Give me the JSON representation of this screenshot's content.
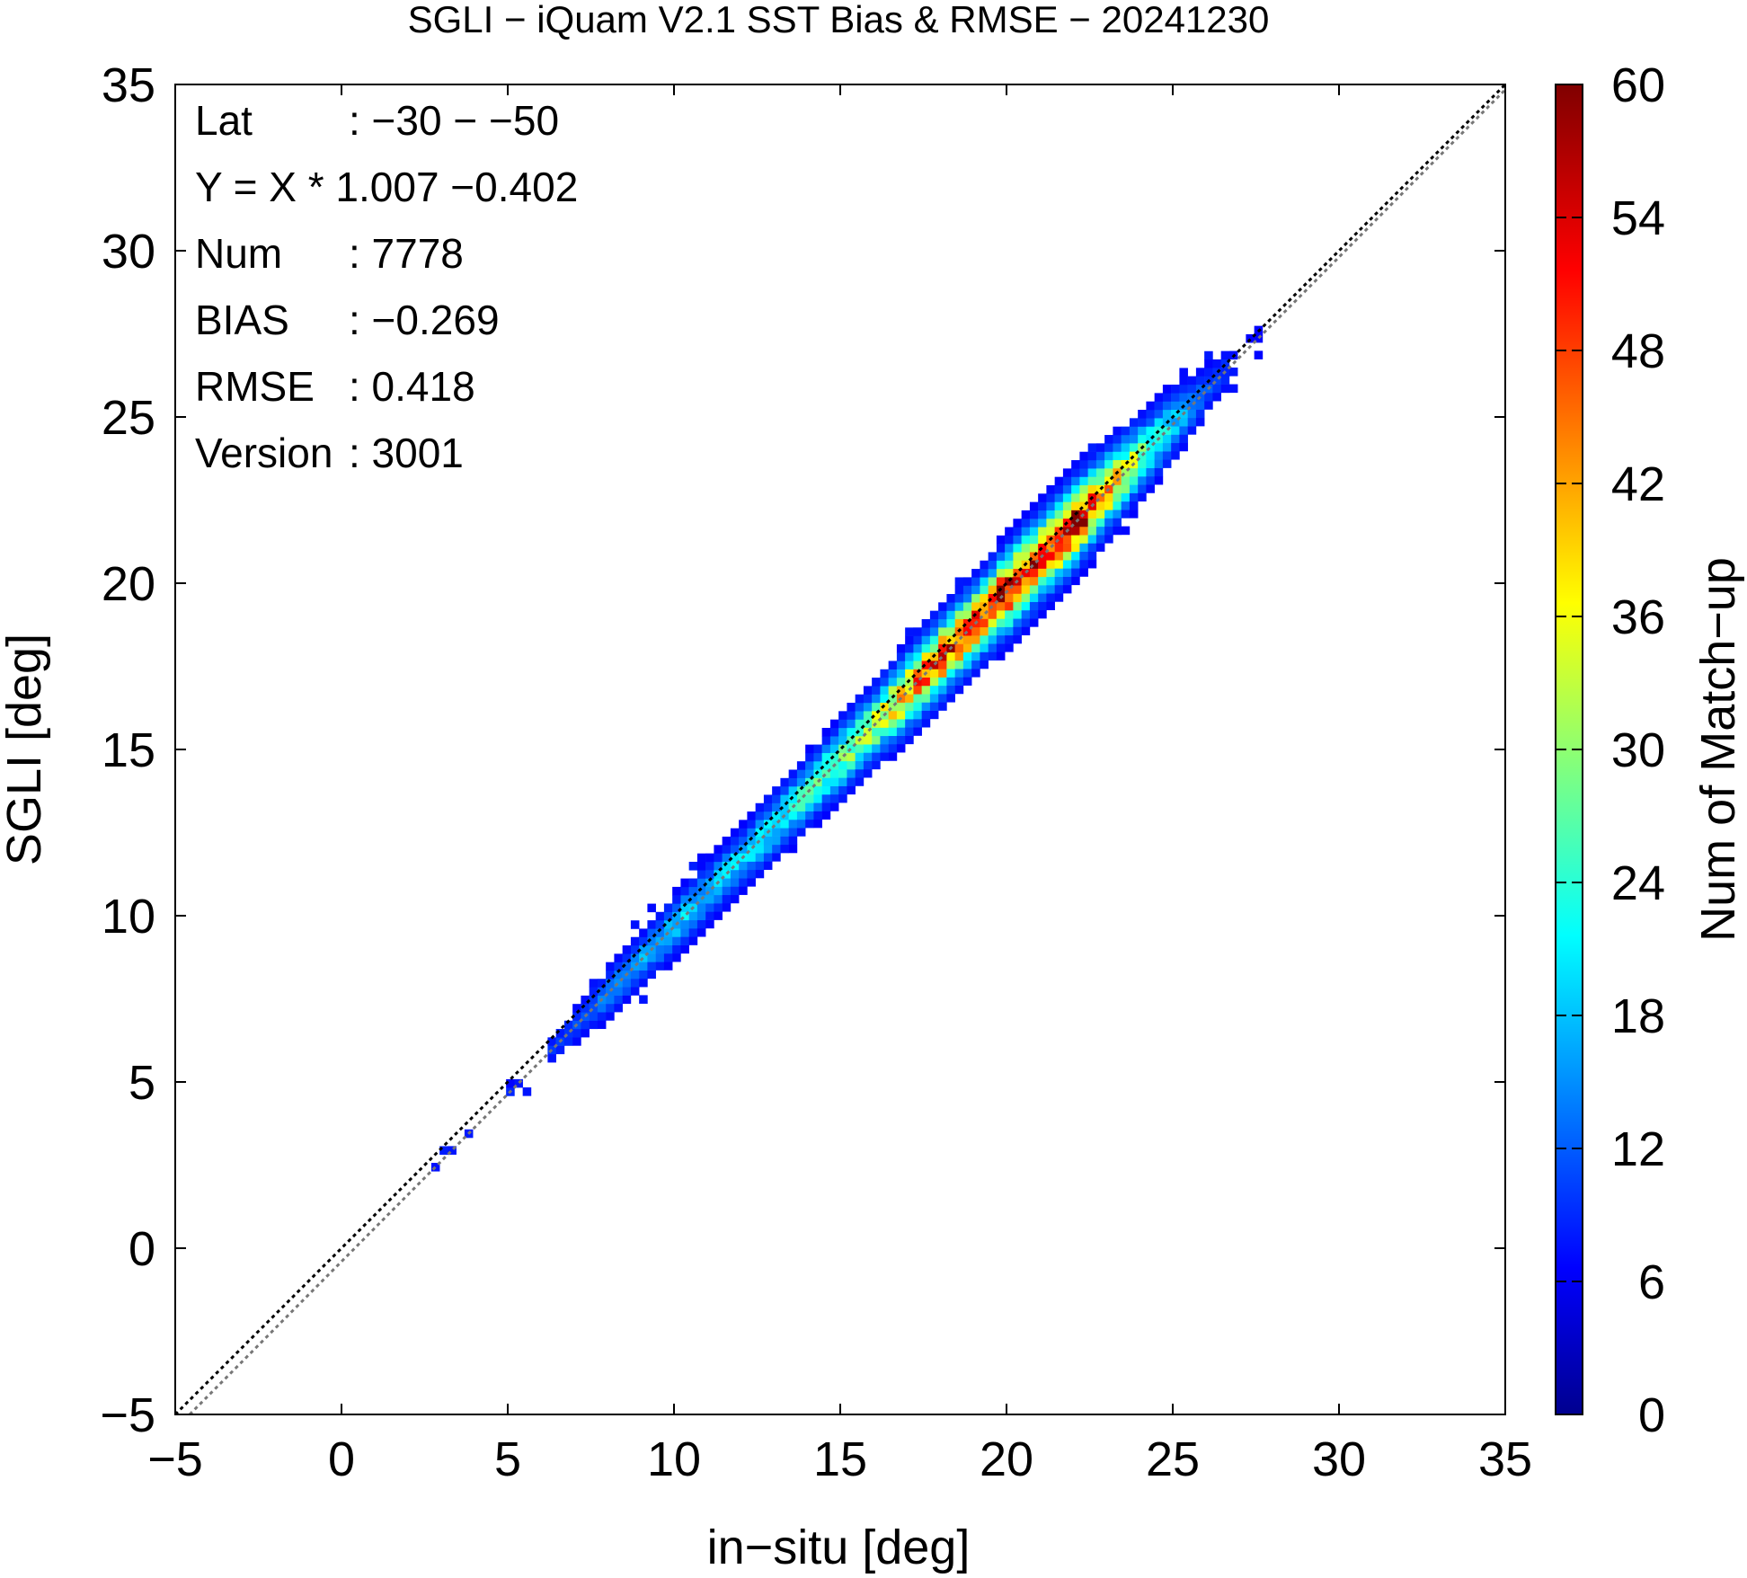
{
  "chart_data": {
    "type": "heatmap",
    "title": "SGLI − iQuam V2.1 SST Bias & RMSE  − 20241230",
    "xlabel": "in−situ [deg]",
    "ylabel": "SGLI [deg]",
    "xlim": [
      -5,
      35
    ],
    "ylim": [
      -5,
      35
    ],
    "x_ticks": [
      "−5",
      "0",
      "5",
      "10",
      "15",
      "20",
      "25",
      "30",
      "35"
    ],
    "y_ticks": [
      "−5",
      "0",
      "5",
      "10",
      "15",
      "20",
      "25",
      "30",
      "35"
    ],
    "grid": false,
    "colorbar": {
      "label": "Num of Match−up",
      "range": [
        0,
        60
      ],
      "ticks": [
        "0",
        "6",
        "12",
        "18",
        "24",
        "30",
        "36",
        "42",
        "48",
        "54",
        "60"
      ],
      "colormap": "jet"
    },
    "reference_lines": [
      {
        "name": "1:1",
        "slope": 1,
        "intercept": 0,
        "style": "dotted",
        "color": "#000000"
      },
      {
        "name": "fit",
        "slope": 1.007,
        "intercept": -0.402,
        "style": "dotted",
        "color": "#777777"
      }
    ],
    "stats": [
      {
        "key": "Lat",
        "value": ": −30 − −50"
      },
      {
        "key": "Y = X * 1.007 −0.402",
        "value": ""
      },
      {
        "key": "Num",
        "value": ": 7778"
      },
      {
        "key": "BIAS",
        "value": ": −0.269"
      },
      {
        "key": "RMSE",
        "value": ": 0.418"
      },
      {
        "key": "Version",
        "value": ": 3001"
      }
    ],
    "density_profile": [
      {
        "x": 2.7,
        "peak": 2,
        "spread": 0.1
      },
      {
        "x": 3.5,
        "peak": 3,
        "spread": 0.15
      },
      {
        "x": 4.2,
        "peak": 2,
        "spread": 0.15
      },
      {
        "x": 5.0,
        "peak": 3,
        "spread": 0.15
      },
      {
        "x": 5.6,
        "peak": 3,
        "spread": 0.15
      },
      {
        "x": 7.0,
        "peak": 6,
        "spread": 0.3
      },
      {
        "x": 8.0,
        "peak": 10,
        "spread": 0.4
      },
      {
        "x": 9.0,
        "peak": 12,
        "spread": 0.4
      },
      {
        "x": 10.0,
        "peak": 15,
        "spread": 0.45
      },
      {
        "x": 11.0,
        "peak": 14,
        "spread": 0.45
      },
      {
        "x": 12.0,
        "peak": 16,
        "spread": 0.45
      },
      {
        "x": 13.0,
        "peak": 18,
        "spread": 0.5
      },
      {
        "x": 14.0,
        "peak": 22,
        "spread": 0.5
      },
      {
        "x": 15.0,
        "peak": 26,
        "spread": 0.55
      },
      {
        "x": 16.0,
        "peak": 32,
        "spread": 0.55
      },
      {
        "x": 17.0,
        "peak": 42,
        "spread": 0.6
      },
      {
        "x": 18.0,
        "peak": 50,
        "spread": 0.6
      },
      {
        "x": 19.0,
        "peak": 48,
        "spread": 0.6
      },
      {
        "x": 20.0,
        "peak": 56,
        "spread": 0.65
      },
      {
        "x": 21.0,
        "peak": 52,
        "spread": 0.65
      },
      {
        "x": 22.0,
        "peak": 56,
        "spread": 0.65
      },
      {
        "x": 23.0,
        "peak": 40,
        "spread": 0.6
      },
      {
        "x": 24.0,
        "peak": 26,
        "spread": 0.55
      },
      {
        "x": 25.0,
        "peak": 14,
        "spread": 0.5
      },
      {
        "x": 26.0,
        "peak": 6,
        "spread": 0.4
      },
      {
        "x": 27.0,
        "peak": 2,
        "spread": 0.3
      },
      {
        "x": 28.0,
        "peak": 1,
        "spread": 0.2
      }
    ]
  }
}
